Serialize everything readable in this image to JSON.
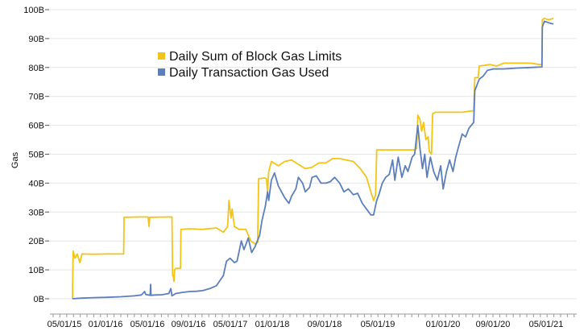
{
  "chart_data": {
    "type": "line",
    "title": "",
    "xlabel": "",
    "ylabel": "Gas",
    "ylim": [
      0,
      100
    ],
    "y_unit_suffix": "B",
    "y_ticks": [
      "0B",
      "10B",
      "20B",
      "30B",
      "40B",
      "50B",
      "60B",
      "70B",
      "80B",
      "90B",
      "100B"
    ],
    "x_ticks": [
      "05/01/15",
      "01/01/16",
      "05/01/16",
      "09/01/16",
      "05/01/17",
      "01/01/18",
      "09/01/18",
      "05/01/19",
      "01/01/20",
      "09/01/20",
      "05/01/21"
    ],
    "grid": "horizontal",
    "legend_position": "top-left",
    "series": [
      {
        "name": "Daily Sum of Block Gas Limits",
        "color": "#f2c418",
        "points": [
          [
            "2015-07-30",
            0
          ],
          [
            "2015-08-02",
            16.5
          ],
          [
            "2015-08-10",
            14
          ],
          [
            "2015-08-20",
            15.5
          ],
          [
            "2015-09-01",
            12.5
          ],
          [
            "2015-09-10",
            15.5
          ],
          [
            "2015-11-01",
            15.4
          ],
          [
            "2016-01-01",
            15.5
          ],
          [
            "2016-03-14",
            15.5
          ],
          [
            "2016-03-16",
            28.2
          ],
          [
            "2016-06-01",
            28.3
          ],
          [
            "2016-07-01",
            28.3
          ],
          [
            "2016-07-05",
            25
          ],
          [
            "2016-07-08",
            28.2
          ],
          [
            "2016-10-15",
            28.3
          ],
          [
            "2016-10-18",
            8
          ],
          [
            "2016-10-21",
            8
          ],
          [
            "2016-10-24",
            6
          ],
          [
            "2016-10-27",
            10
          ],
          [
            "2016-11-01",
            10.5
          ],
          [
            "2016-11-22",
            10.5
          ],
          [
            "2016-11-24",
            24
          ],
          [
            "2017-01-01",
            24.2
          ],
          [
            "2017-03-01",
            24
          ],
          [
            "2017-05-01",
            24.5
          ],
          [
            "2017-06-01",
            23
          ],
          [
            "2017-06-20",
            25
          ],
          [
            "2017-06-26",
            34
          ],
          [
            "2017-07-05",
            28
          ],
          [
            "2017-07-10",
            31
          ],
          [
            "2017-07-20",
            25
          ],
          [
            "2017-08-10",
            24
          ],
          [
            "2017-09-10",
            24
          ],
          [
            "2017-10-01",
            20
          ],
          [
            "2017-10-20",
            19
          ],
          [
            "2017-11-01",
            19.5
          ],
          [
            "2017-11-05",
            41.5
          ],
          [
            "2017-12-01",
            41.8
          ],
          [
            "2017-12-10",
            41.5
          ],
          [
            "2017-12-15",
            37
          ],
          [
            "2017-12-20",
            44
          ],
          [
            "2018-01-01",
            47.5
          ],
          [
            "2018-02-01",
            46
          ],
          [
            "2018-03-01",
            47.5
          ],
          [
            "2018-04-01",
            48
          ],
          [
            "2018-05-01",
            46.5
          ],
          [
            "2018-06-01",
            45
          ],
          [
            "2018-07-01",
            45.5
          ],
          [
            "2018-08-01",
            47
          ],
          [
            "2018-09-01",
            47
          ],
          [
            "2018-10-01",
            48.5
          ],
          [
            "2018-11-01",
            48.5
          ],
          [
            "2018-12-01",
            48
          ],
          [
            "2019-01-01",
            47.5
          ],
          [
            "2019-02-01",
            45
          ],
          [
            "2019-03-01",
            42
          ],
          [
            "2019-03-20",
            37
          ],
          [
            "2019-04-01",
            34
          ],
          [
            "2019-04-10",
            36
          ],
          [
            "2019-04-15",
            51.5
          ],
          [
            "2019-06-01",
            51.5
          ],
          [
            "2019-08-01",
            51.5
          ],
          [
            "2019-10-01",
            51.5
          ],
          [
            "2019-10-10",
            52
          ],
          [
            "2019-10-15",
            63.5
          ],
          [
            "2019-10-25",
            62
          ],
          [
            "2019-11-01",
            58
          ],
          [
            "2019-11-10",
            61
          ],
          [
            "2019-11-20",
            55
          ],
          [
            "2019-11-30",
            56
          ],
          [
            "2019-12-05",
            51
          ],
          [
            "2019-12-15",
            50
          ],
          [
            "2019-12-20",
            64
          ],
          [
            "2020-01-01",
            64.5
          ],
          [
            "2020-03-01",
            64.5
          ],
          [
            "2020-05-01",
            64.5
          ],
          [
            "2020-06-10",
            65
          ],
          [
            "2020-06-20",
            65
          ],
          [
            "2020-06-25",
            76.5
          ],
          [
            "2020-07-10",
            76.5
          ],
          [
            "2020-07-15",
            80.5
          ],
          [
            "2020-09-01",
            81
          ],
          [
            "2020-10-01",
            80.5
          ],
          [
            "2020-11-01",
            81.5
          ],
          [
            "2021-01-01",
            81.5
          ],
          [
            "2021-03-01",
            81.5
          ],
          [
            "2021-04-10",
            81
          ],
          [
            "2021-04-20",
            81
          ],
          [
            "2021-04-22",
            96.5
          ],
          [
            "2021-05-01",
            97
          ],
          [
            "2021-05-20",
            96.5
          ],
          [
            "2021-06-10",
            97
          ]
        ]
      },
      {
        "name": "Daily Transaction Gas Used",
        "color": "#5b7fbd",
        "points": [
          [
            "2015-07-30",
            0
          ],
          [
            "2015-09-01",
            0.2
          ],
          [
            "2015-11-01",
            0.4
          ],
          [
            "2016-01-01",
            0.5
          ],
          [
            "2016-03-01",
            0.7
          ],
          [
            "2016-05-01",
            1.0
          ],
          [
            "2016-06-01",
            1.3
          ],
          [
            "2016-06-15",
            2.5
          ],
          [
            "2016-06-20",
            1.5
          ],
          [
            "2016-07-10",
            1.2
          ],
          [
            "2016-07-12",
            5
          ],
          [
            "2016-07-14",
            1.2
          ],
          [
            "2016-08-01",
            1.3
          ],
          [
            "2016-09-01",
            1.4
          ],
          [
            "2016-10-01",
            1.8
          ],
          [
            "2016-10-10",
            3.5
          ],
          [
            "2016-10-15",
            1.0
          ],
          [
            "2016-11-01",
            1.8
          ],
          [
            "2016-12-01",
            2.2
          ],
          [
            "2017-01-01",
            2.5
          ],
          [
            "2017-02-01",
            2.6
          ],
          [
            "2017-03-01",
            2.8
          ],
          [
            "2017-04-01",
            3.5
          ],
          [
            "2017-05-01",
            4.5
          ],
          [
            "2017-06-01",
            8
          ],
          [
            "2017-06-15",
            13
          ],
          [
            "2017-07-01",
            14
          ],
          [
            "2017-07-20",
            12.5
          ],
          [
            "2017-08-01",
            13
          ],
          [
            "2017-08-20",
            20
          ],
          [
            "2017-09-01",
            17
          ],
          [
            "2017-09-20",
            21
          ],
          [
            "2017-10-05",
            16
          ],
          [
            "2017-10-20",
            18
          ],
          [
            "2017-11-10",
            22
          ],
          [
            "2017-11-20",
            27
          ],
          [
            "2017-12-05",
            32
          ],
          [
            "2017-12-15",
            37
          ],
          [
            "2017-12-20",
            34
          ],
          [
            "2018-01-01",
            41
          ],
          [
            "2018-01-15",
            43.5
          ],
          [
            "2018-02-01",
            39
          ],
          [
            "2018-02-15",
            37
          ],
          [
            "2018-03-01",
            35
          ],
          [
            "2018-03-20",
            33
          ],
          [
            "2018-04-01",
            35.5
          ],
          [
            "2018-04-20",
            38
          ],
          [
            "2018-05-01",
            42
          ],
          [
            "2018-05-20",
            40
          ],
          [
            "2018-06-01",
            37
          ],
          [
            "2018-06-20",
            38.5
          ],
          [
            "2018-07-01",
            42
          ],
          [
            "2018-07-20",
            42.5
          ],
          [
            "2018-08-10",
            40
          ],
          [
            "2018-09-01",
            40
          ],
          [
            "2018-09-20",
            40.5
          ],
          [
            "2018-10-10",
            42
          ],
          [
            "2018-11-01",
            40
          ],
          [
            "2018-11-20",
            37
          ],
          [
            "2018-12-10",
            38
          ],
          [
            "2019-01-01",
            36
          ],
          [
            "2019-01-20",
            36.5
          ],
          [
            "2019-02-10",
            33
          ],
          [
            "2019-03-01",
            31
          ],
          [
            "2019-03-20",
            29
          ],
          [
            "2019-04-01",
            29
          ],
          [
            "2019-04-15",
            34
          ],
          [
            "2019-04-25",
            36
          ],
          [
            "2019-05-10",
            40
          ],
          [
            "2019-05-25",
            42
          ],
          [
            "2019-06-10",
            43
          ],
          [
            "2019-06-25",
            48
          ],
          [
            "2019-07-05",
            41
          ],
          [
            "2019-07-20",
            49
          ],
          [
            "2019-08-05",
            42
          ],
          [
            "2019-08-20",
            46
          ],
          [
            "2019-09-01",
            44
          ],
          [
            "2019-09-20",
            49
          ],
          [
            "2019-10-01",
            50
          ],
          [
            "2019-10-15",
            60
          ],
          [
            "2019-10-25",
            52
          ],
          [
            "2019-11-05",
            45
          ],
          [
            "2019-11-15",
            50
          ],
          [
            "2019-11-25",
            42
          ],
          [
            "2019-12-10",
            49
          ],
          [
            "2019-12-25",
            44
          ],
          [
            "2020-01-10",
            41
          ],
          [
            "2020-01-25",
            46
          ],
          [
            "2020-02-05",
            38
          ],
          [
            "2020-02-20",
            44
          ],
          [
            "2020-03-05",
            48
          ],
          [
            "2020-03-20",
            44
          ],
          [
            "2020-04-01",
            49
          ],
          [
            "2020-04-15",
            53
          ],
          [
            "2020-04-30",
            57
          ],
          [
            "2020-05-15",
            56
          ],
          [
            "2020-05-30",
            59
          ],
          [
            "2020-06-20",
            61
          ],
          [
            "2020-06-25",
            72
          ],
          [
            "2020-07-15",
            76
          ],
          [
            "2020-08-01",
            77
          ],
          [
            "2020-08-20",
            79
          ],
          [
            "2020-09-15",
            79.5
          ],
          [
            "2020-11-01",
            79.5
          ],
          [
            "2021-01-01",
            79.8
          ],
          [
            "2021-03-01",
            80
          ],
          [
            "2021-04-20",
            80.2
          ],
          [
            "2021-04-22",
            94
          ],
          [
            "2021-05-01",
            96
          ],
          [
            "2021-05-20",
            95.5
          ],
          [
            "2021-06-10",
            95
          ]
        ]
      }
    ]
  }
}
